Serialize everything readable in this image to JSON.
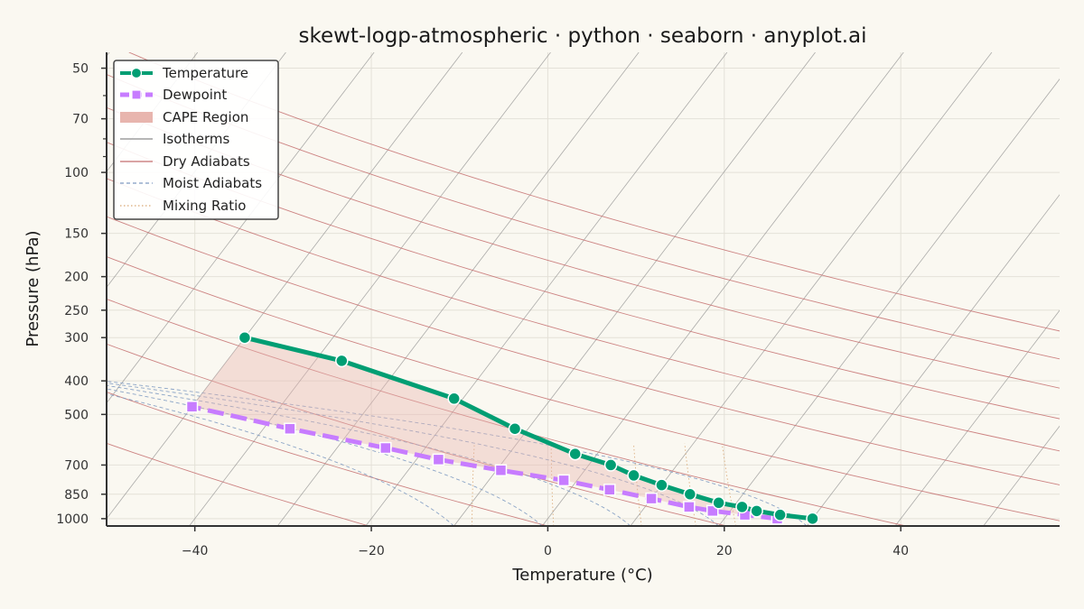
{
  "chart_data": {
    "type": "line",
    "title": "skewt-logp-atmospheric · python · seaborn · anyplot.ai",
    "xlabel": "Temperature (°C)",
    "ylabel": "Pressure (hPa)",
    "xlim": [
      -50,
      58
    ],
    "ylim": [
      1050,
      45
    ],
    "y_scale": "log",
    "x_ticks": [
      -40,
      -20,
      0,
      20,
      40
    ],
    "x_tick_labels": [
      "−40",
      "−20",
      "0",
      "20",
      "40"
    ],
    "y_ticks": [
      50,
      70,
      100,
      150,
      200,
      250,
      300,
      400,
      500,
      700,
      850,
      1000
    ],
    "y_tick_labels": [
      "50",
      "70",
      "100",
      "150",
      "200",
      "250",
      "300",
      "400",
      "500",
      "700",
      "850",
      "1000"
    ],
    "grid": true,
    "legend_position": "top-left",
    "legend": [
      "Temperature",
      "Dewpoint",
      "CAPE Region",
      "Isotherms",
      "Dry Adiabats",
      "Moist Adiabats",
      "Mixing Ratio"
    ],
    "colors": {
      "temperature": "#009E73",
      "dewpoint": "#C77CFF",
      "cape": "#E8B5AE",
      "isotherm": "#8A8A8A",
      "dry_adiabat": "#C46E6E",
      "moist_adiabat": "#7F9BC2",
      "mixing_ratio": "#D9A774"
    },
    "series": [
      {
        "name": "Temperature",
        "points": [
          {
            "x": 30.0,
            "p": 1000
          },
          {
            "x": 26.0,
            "p": 975
          },
          {
            "x": 23.0,
            "p": 950
          },
          {
            "x": 21.0,
            "p": 925
          },
          {
            "x": 18.0,
            "p": 900
          },
          {
            "x": 14.0,
            "p": 850
          },
          {
            "x": 10.0,
            "p": 800
          },
          {
            "x": 6.0,
            "p": 750
          },
          {
            "x": 2.5,
            "p": 700
          },
          {
            "x": -2.5,
            "p": 650
          },
          {
            "x": -11.5,
            "p": 550
          },
          {
            "x": -21.0,
            "p": 450
          },
          {
            "x": -37.0,
            "p": 350
          },
          {
            "x": -50.0,
            "p": 300
          }
        ]
      },
      {
        "name": "Dewpoint",
        "points": [
          {
            "x": 26.0,
            "p": 1000
          },
          {
            "x": 22.0,
            "p": 975
          },
          {
            "x": 18.0,
            "p": 950
          },
          {
            "x": 15.0,
            "p": 925
          },
          {
            "x": 10.0,
            "p": 875
          },
          {
            "x": 4.5,
            "p": 825
          },
          {
            "x": -1.5,
            "p": 775
          },
          {
            "x": -9.5,
            "p": 725
          },
          {
            "x": -17.5,
            "p": 675
          },
          {
            "x": -24.5,
            "p": 625
          },
          {
            "x": -37.0,
            "p": 550
          },
          {
            "x": -50.0,
            "p": 475
          }
        ]
      }
    ],
    "isotherms": [
      -130,
      -120,
      -110,
      -100,
      -90,
      -80,
      -70,
      -60,
      -50,
      -40,
      -30,
      -20,
      -10,
      0,
      10,
      20,
      30,
      40,
      50
    ],
    "dry_adiabats": [
      250,
      270,
      290,
      310,
      330,
      350,
      370,
      390,
      410,
      430,
      450
    ],
    "moist_adiabats": [
      -10,
      0,
      10,
      20,
      30
    ],
    "mixing_ratios": [
      2,
      4,
      8,
      12,
      16
    ]
  }
}
